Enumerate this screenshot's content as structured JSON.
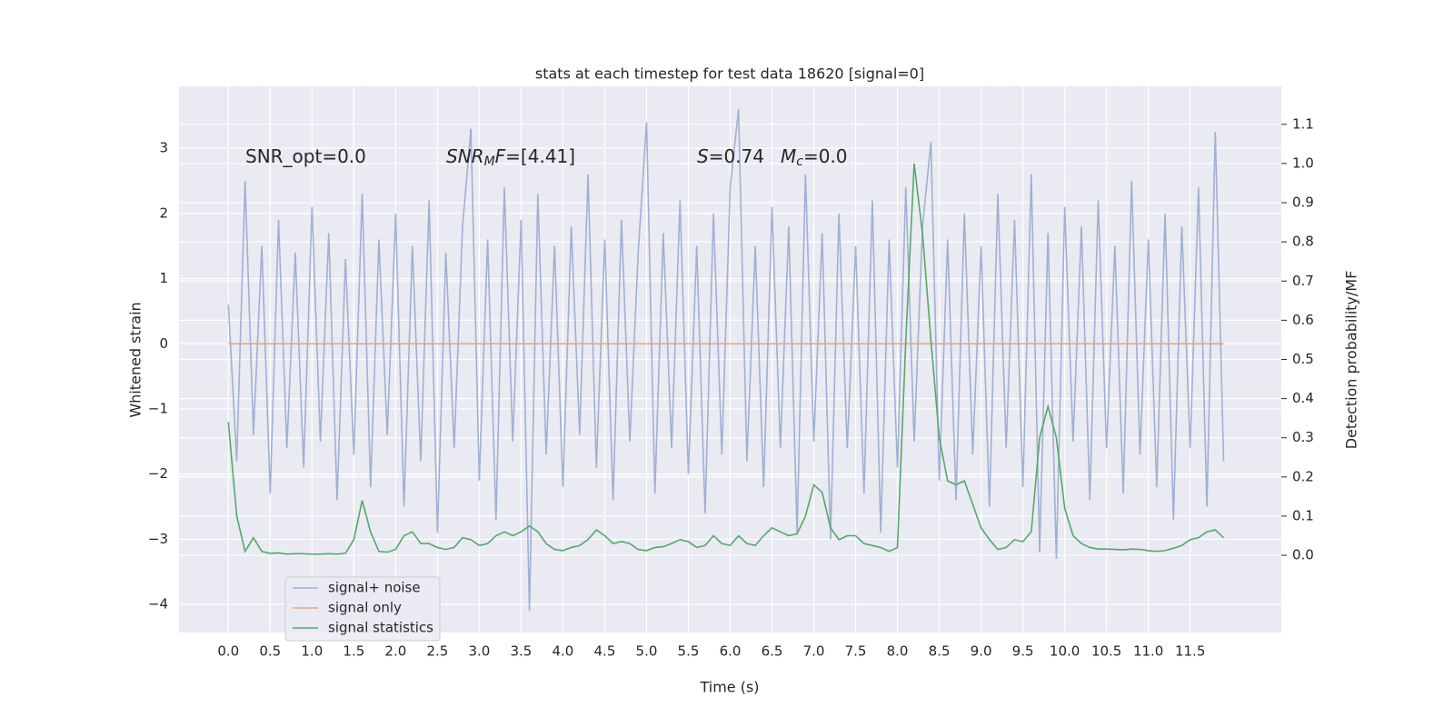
{
  "chart_data": {
    "type": "line",
    "title": "stats at each timestep for test data 18620 [signal=0]",
    "xlabel": "Time (s)",
    "ylabel": "Whitened strain",
    "y2label": "Detection probability/MF",
    "x": [
      0,
      0.1,
      0.2,
      0.3,
      0.4,
      0.5,
      0.6,
      0.7,
      0.8,
      0.9,
      1,
      1.1,
      1.2,
      1.3,
      1.4,
      1.5,
      1.6,
      1.7,
      1.8,
      1.9,
      2,
      2.1,
      2.2,
      2.3,
      2.4,
      2.5,
      2.6,
      2.7,
      2.8,
      2.9,
      3,
      3.1,
      3.2,
      3.3,
      3.4,
      3.5,
      3.6,
      3.7,
      3.8,
      3.9,
      4,
      4.1,
      4.2,
      4.3,
      4.4,
      4.5,
      4.6,
      4.7,
      4.8,
      4.9,
      5,
      5.1,
      5.2,
      5.3,
      5.4,
      5.5,
      5.6,
      5.7,
      5.8,
      5.9,
      6,
      6.1,
      6.2,
      6.3,
      6.4,
      6.5,
      6.6,
      6.7,
      6.8,
      6.9,
      7,
      7.1,
      7.2,
      7.3,
      7.4,
      7.5,
      7.6,
      7.7,
      7.8,
      7.9,
      8,
      8.1,
      8.2,
      8.3,
      8.4,
      8.5,
      8.6,
      8.7,
      8.8,
      8.9,
      9,
      9.1,
      9.2,
      9.3,
      9.4,
      9.5,
      9.6,
      9.7,
      9.8,
      9.9,
      10,
      10.1,
      10.2,
      10.3,
      10.4,
      10.5,
      10.6,
      10.7,
      10.8,
      10.9,
      11,
      11.1,
      11.2,
      11.3,
      11.4,
      11.5,
      11.6,
      11.7,
      11.8,
      11.9
    ],
    "series": [
      {
        "name": "signal+ noise",
        "color": "#8da0cb",
        "opacity": 0.8,
        "values": [
          0.6,
          -1.8,
          2.5,
          -1.4,
          1.5,
          -2.3,
          1.9,
          -1.6,
          1.4,
          -1.9,
          2.1,
          -1.5,
          1.7,
          -2.4,
          1.3,
          -1.7,
          2.3,
          -2.2,
          1.6,
          -1.4,
          2.0,
          -2.5,
          1.5,
          -1.8,
          2.2,
          -2.9,
          1.4,
          -1.6,
          1.8,
          3.3,
          -2.1,
          1.6,
          -2.7,
          2.4,
          -1.5,
          1.9,
          -4.1,
          2.3,
          -1.7,
          1.5,
          -2.2,
          1.8,
          -1.4,
          2.6,
          -1.9,
          1.6,
          -2.4,
          1.9,
          -1.5,
          1.4,
          3.4,
          -2.3,
          1.7,
          -1.6,
          2.2,
          -2.0,
          1.5,
          -2.6,
          2.0,
          -1.7,
          2.4,
          3.6,
          -1.8,
          1.5,
          -2.2,
          2.1,
          -1.6,
          1.8,
          -2.9,
          2.6,
          -1.5,
          1.7,
          -3.0,
          2.0,
          -1.6,
          1.5,
          -2.3,
          2.2,
          -2.9,
          1.6,
          -1.9,
          2.4,
          -1.5,
          1.8,
          3.1,
          -2.1,
          1.6,
          -2.4,
          2.0,
          -1.7,
          1.5,
          -2.5,
          2.3,
          -1.6,
          1.9,
          -2.2,
          2.6,
          -3.2,
          1.7,
          -3.3,
          2.1,
          -1.5,
          1.8,
          -2.4,
          2.2,
          -1.6,
          1.5,
          -2.3,
          2.5,
          -1.7,
          1.6,
          -2.2,
          2.0,
          -2.7,
          1.8,
          -1.6,
          2.4,
          -2.5,
          3.25,
          -1.8
        ]
      },
      {
        "name": "signal only",
        "color": "#e5a88a",
        "opacity": 1,
        "values": [
          0,
          0,
          0,
          0,
          0,
          0,
          0,
          0,
          0,
          0,
          0,
          0,
          0,
          0,
          0,
          0,
          0,
          0,
          0,
          0,
          0,
          0,
          0,
          0,
          0,
          0,
          0,
          0,
          0,
          0,
          0,
          0,
          0,
          0,
          0,
          0,
          0,
          0,
          0,
          0,
          0,
          0,
          0,
          0,
          0,
          0,
          0,
          0,
          0,
          0,
          0,
          0,
          0,
          0,
          0,
          0,
          0,
          0,
          0,
          0,
          0,
          0,
          0,
          0,
          0,
          0,
          0,
          0,
          0,
          0,
          0,
          0,
          0,
          0,
          0,
          0,
          0,
          0,
          0,
          0,
          0,
          0,
          0,
          0,
          0,
          0,
          0,
          0,
          0,
          0,
          0,
          0,
          0,
          0,
          0,
          0,
          0,
          0,
          0,
          0,
          0,
          0,
          0,
          0,
          0,
          0,
          0,
          0,
          0,
          0,
          0,
          0,
          0,
          0,
          0,
          0,
          0,
          0,
          0,
          0
        ]
      },
      {
        "name": "signal statistics",
        "color": "#55a868",
        "opacity": 1,
        "axis": "y2",
        "values": [
          0.34,
          0.1,
          0.01,
          0.045,
          0.01,
          0.005,
          0.006,
          0.003,
          0.004,
          0.004,
          0.003,
          0.003,
          0.004,
          0.003,
          0.005,
          0.04,
          0.14,
          0.06,
          0.01,
          0.008,
          0.015,
          0.05,
          0.06,
          0.03,
          0.03,
          0.02,
          0.015,
          0.02,
          0.045,
          0.04,
          0.025,
          0.03,
          0.05,
          0.06,
          0.05,
          0.06,
          0.075,
          0.06,
          0.03,
          0.015,
          0.012,
          0.02,
          0.025,
          0.04,
          0.065,
          0.05,
          0.03,
          0.035,
          0.03,
          0.015,
          0.012,
          0.02,
          0.022,
          0.03,
          0.04,
          0.035,
          0.02,
          0.025,
          0.05,
          0.03,
          0.025,
          0.05,
          0.03,
          0.025,
          0.05,
          0.07,
          0.06,
          0.05,
          0.055,
          0.1,
          0.18,
          0.16,
          0.07,
          0.04,
          0.05,
          0.05,
          0.03,
          0.025,
          0.02,
          0.01,
          0.02,
          0.55,
          1.0,
          0.82,
          0.55,
          0.3,
          0.19,
          0.18,
          0.19,
          0.13,
          0.07,
          0.04,
          0.015,
          0.02,
          0.04,
          0.035,
          0.06,
          0.3,
          0.38,
          0.3,
          0.12,
          0.05,
          0.03,
          0.02,
          0.016,
          0.016,
          0.015,
          0.014,
          0.016,
          0.015,
          0.012,
          0.01,
          0.012,
          0.018,
          0.025,
          0.04,
          0.045,
          0.06,
          0.065,
          0.045
        ]
      }
    ],
    "xlim": [
      -0.59,
      12.59
    ],
    "ylim": [
      -4.43,
      3.95
    ],
    "y2lim": [
      -0.197,
      1.197
    ],
    "xticks": [
      {
        "value": 0,
        "label": "0.0"
      },
      0.5,
      {
        "value": 1,
        "label": "1.0"
      },
      1.5,
      {
        "value": 2,
        "label": "2.0"
      },
      2.5,
      {
        "value": 3,
        "label": "3.0"
      },
      3.5,
      {
        "value": 4,
        "label": "4.0"
      },
      4.5,
      {
        "value": 5,
        "label": "5.0"
      },
      5.5,
      {
        "value": 6,
        "label": "6.0"
      },
      6.5,
      {
        "value": 7,
        "label": "7.0"
      },
      7.5,
      {
        "value": 8,
        "label": "8.0"
      },
      8.5,
      {
        "value": 9,
        "label": "9.0"
      },
      9.5,
      {
        "value": 10,
        "label": "10.0"
      },
      10.5,
      {
        "value": 11,
        "label": "11.0"
      },
      11.5
    ],
    "yticks": [
      {
        "value": -4,
        "label": "−4"
      },
      {
        "value": -3,
        "label": "−3"
      },
      {
        "value": -2,
        "label": "−2"
      },
      {
        "value": -1,
        "label": "−1"
      },
      0,
      1,
      2,
      3
    ],
    "y2ticks": [
      {
        "value": 0,
        "label": "0.0"
      },
      0.1,
      0.2,
      0.3,
      0.4,
      0.5,
      0.6,
      0.7,
      0.8,
      0.9,
      {
        "value": 1,
        "label": "1.0"
      },
      1.1
    ],
    "grid": true,
    "legend": "lower left",
    "annotations": [
      [
        {
          "text": "SNR_opt=0.0",
          "style": "normal"
        }
      ],
      [
        {
          "text": "SNR",
          "style": "italic"
        },
        {
          "text": "M",
          "style": "sub"
        },
        {
          "text": "F",
          "style": "italic"
        },
        {
          "text": "=[4.41]",
          "style": "normal"
        }
      ],
      [
        {
          "text": "S",
          "style": "italic"
        },
        {
          "text": "=0.74",
          "style": "normal"
        }
      ],
      [
        {
          "text": "M",
          "style": "italic"
        },
        {
          "text": "c",
          "style": "sub"
        },
        {
          "text": "=0.0",
          "style": "normal"
        }
      ]
    ]
  }
}
